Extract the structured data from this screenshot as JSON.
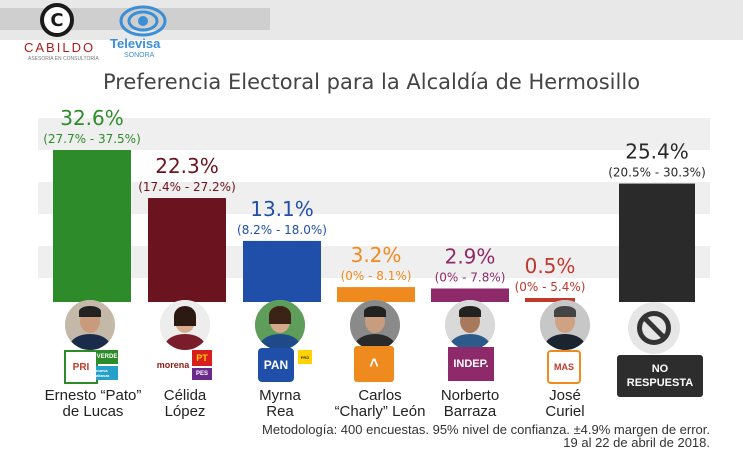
{
  "header": {
    "cabildo_logo": "CABILDO",
    "cabildo_sub": "ASESORÍA EN CONSULTORÍA",
    "televisa_logo": "Televisa",
    "televisa_sub": "SONORA"
  },
  "chart_data": {
    "type": "bar",
    "title": "Preferencia Electoral para la Alcaldía de Hermosillo",
    "categories": [
      "Ernesto “Pato” de Lucas",
      "Célida López",
      "Myrna Rea",
      "Carlos “Charly” León",
      "Norberto Barraza",
      "José Curiel",
      "NO RESPUESTA"
    ],
    "values": [
      32.6,
      22.3,
      13.1,
      3.2,
      2.9,
      0.5,
      25.4
    ],
    "value_labels": [
      "32.6%",
      "22.3%",
      "13.1%",
      "3.2%",
      "2.9%",
      "0.5%",
      "25.4%"
    ],
    "ranges": [
      "(27.7% - 37.5%)",
      "(17.4% - 27.2%)",
      "(8.2% - 18.0%)",
      "(0% - 8.1%)",
      "(0% - 7.8%)",
      "(0% - 5.4%)",
      "(20.5% - 30.3%)"
    ],
    "colors": [
      "#2e8b2a",
      "#6b1420",
      "#1f4fa8",
      "#ef8a1f",
      "#8e2a6a",
      "#c0392b",
      "#2a2a2a"
    ],
    "label_colors": [
      "#2e8b2a",
      "#6b1420",
      "#1f4fa8",
      "#ef8a1f",
      "#8e2a6a",
      "#c0392b",
      "#2a2a2a"
    ],
    "ylim": [
      0,
      35
    ],
    "grid": "alternating horizontal bands",
    "legend": "none"
  },
  "candidates": [
    {
      "name_line1": "Ernesto “Pato”",
      "name_line2": "de Lucas",
      "party": [
        "PRI",
        "VERDE",
        "nueva alianza"
      ],
      "photo": "candidate-photo"
    },
    {
      "name_line1": "Célida",
      "name_line2": "López",
      "party": [
        "morena",
        "PT",
        "PES"
      ],
      "photo": "candidate-photo"
    },
    {
      "name_line1": "Myrna",
      "name_line2": "Rea",
      "party": [
        "PAN",
        "PRD"
      ],
      "photo": "candidate-photo"
    },
    {
      "name_line1": "Carlos",
      "name_line2": "“Charly” León",
      "party": [
        "MC"
      ],
      "photo": "candidate-photo"
    },
    {
      "name_line1": "Norberto",
      "name_line2": "Barraza",
      "party": [
        "INDEP."
      ],
      "photo": "candidate-photo"
    },
    {
      "name_line1": "José",
      "name_line2": "Curiel",
      "party": [
        "MAS"
      ],
      "photo": "candidate-photo"
    }
  ],
  "no_response": {
    "line1": "NO",
    "line2": "RESPUESTA",
    "icon": "no-entry-icon"
  },
  "footer": {
    "method_line1": "Metodología: 400 encuestas. 95% nivel de confianza. ±4.9% margen de error.",
    "method_line2": "19 al 22 de abril de 2018."
  }
}
